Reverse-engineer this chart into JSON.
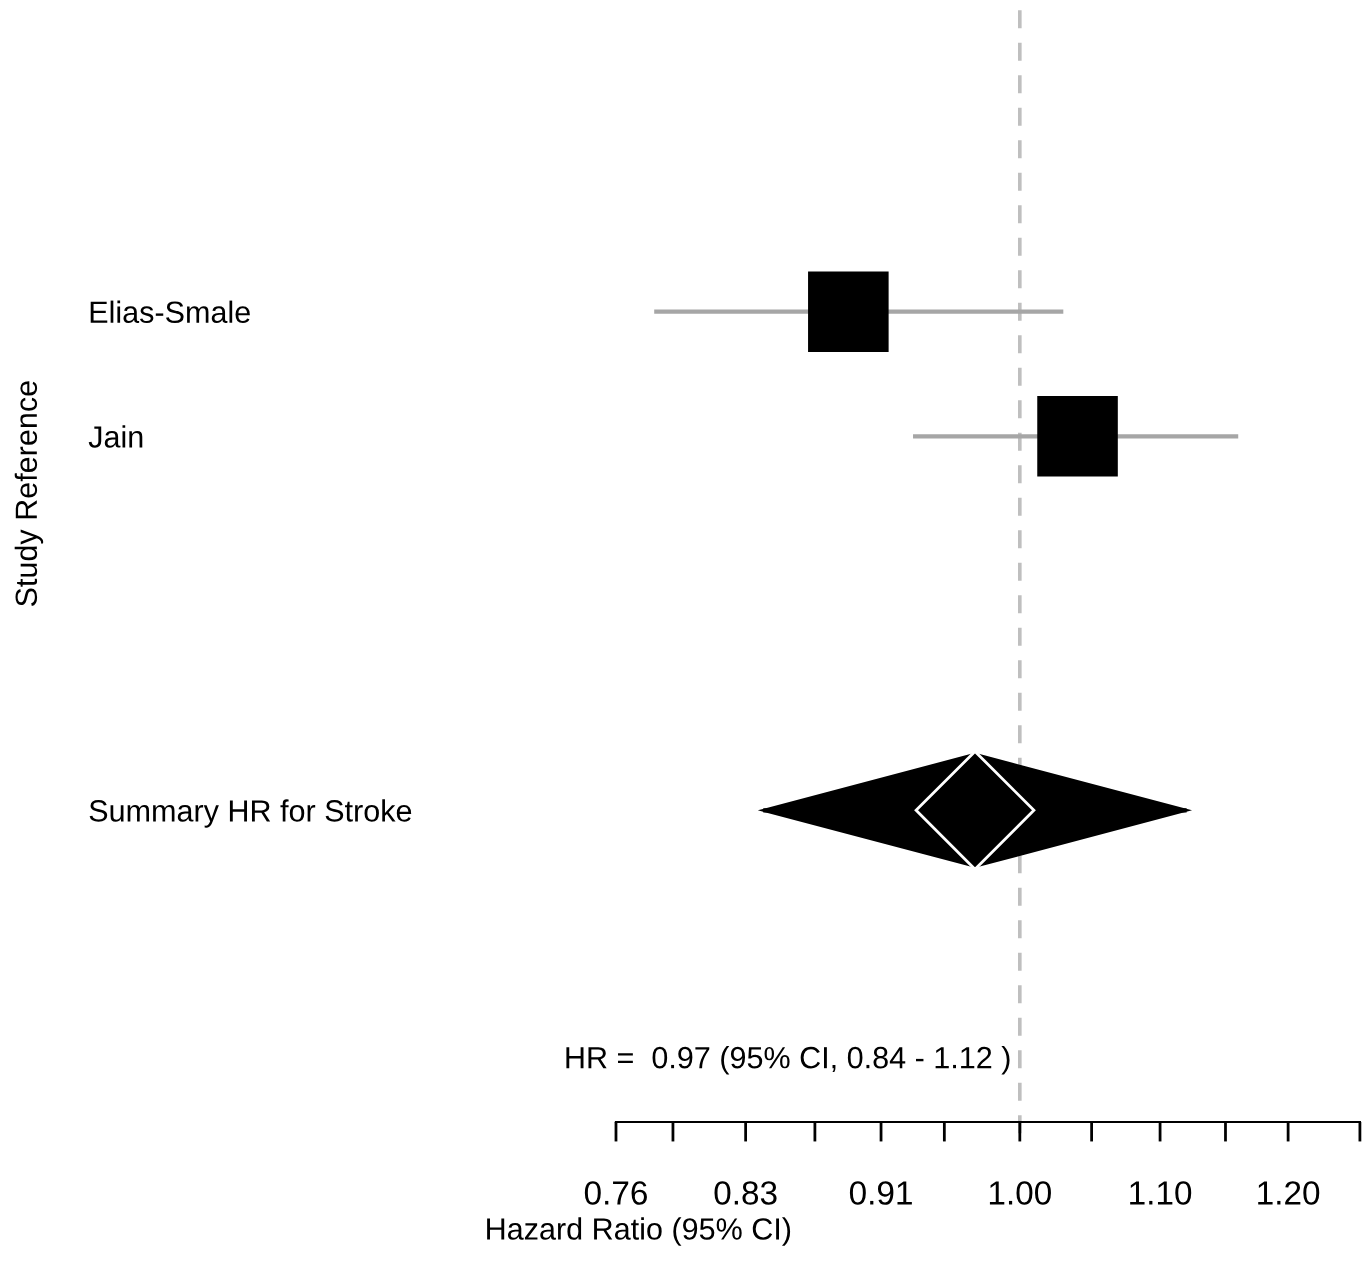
{
  "chart_data": {
    "type": "scatter",
    "orientation": "horizontal",
    "log": "x",
    "ylabel": "Study Reference",
    "xlabel": "Hazard Ratio (95% CI)",
    "categories": [
      null,
      null,
      "Elias-Smale",
      "Jain",
      null,
      null,
      "Summary HR for Stroke",
      null,
      null
    ],
    "series": [
      {
        "type": "scatter",
        "marker": "square",
        "color": "#000000",
        "values": [
          null,
          null,
          0.89,
          1.04,
          null,
          null,
          null,
          null,
          null
        ],
        "errors": [
          null,
          null,
          [
            0.78,
            1.03
          ],
          [
            0.93,
            1.16
          ],
          null,
          null,
          null,
          null,
          null
        ]
      },
      {
        "type": "scatter",
        "marker": "diamond",
        "color": "#000000",
        "values": [
          null,
          null,
          null,
          null,
          null,
          null,
          0.97,
          null,
          null
        ],
        "errors": [
          null,
          null,
          null,
          null,
          null,
          null,
          [
            0.84,
            1.12
          ],
          null,
          null
        ]
      }
    ],
    "xlim": [
      0.76,
      1.26
    ],
    "xticks": [
      0.76,
      {
        "value": 0.79,
        "label": null
      },
      0.83,
      {
        "value": 0.87,
        "label": null
      },
      0.91,
      {
        "value": 0.95,
        "label": null
      },
      {
        "value": 1.0,
        "label": "1.00"
      },
      {
        "value": 1.05,
        "label": null
      },
      {
        "value": 1.1,
        "label": "1.10"
      },
      {
        "value": 1.15,
        "label": null
      },
      {
        "value": 1.2,
        "label": "1.20"
      },
      {
        "value": 1.26,
        "label": null
      }
    ],
    "ref_lines": [
      {
        "axis": "x",
        "value": 1.0,
        "color": "#bfbfbf",
        "line_style": "dashed"
      }
    ],
    "annotations": [
      "HR =  0.97 (95% CI, 0.84 - 1.12 )"
    ],
    "grid": false,
    "legend": false
  }
}
